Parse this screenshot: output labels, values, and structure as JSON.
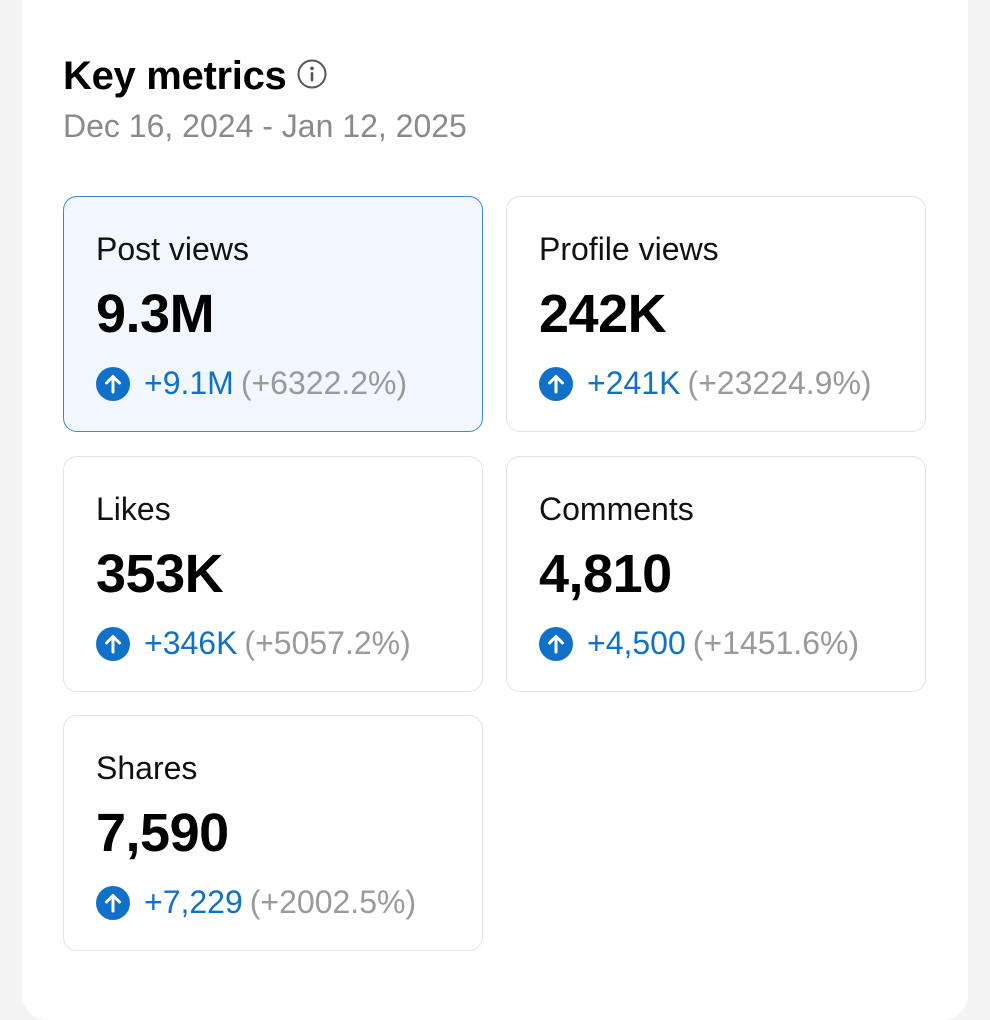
{
  "header": {
    "title": "Key metrics",
    "date_range": "Dec 16, 2024 - Jan 12, 2025"
  },
  "metrics": [
    {
      "label": "Post views",
      "value": "9.3M",
      "delta": "+9.1M",
      "percent": "(+6322.2%)",
      "selected": true
    },
    {
      "label": "Profile views",
      "value": "242K",
      "delta": "+241K",
      "percent": "(+23224.9%)",
      "selected": false
    },
    {
      "label": "Likes",
      "value": "353K",
      "delta": "+346K",
      "percent": "(+5057.2%)",
      "selected": false
    },
    {
      "label": "Comments",
      "value": "4,810",
      "delta": "+4,500",
      "percent": "(+1451.6%)",
      "selected": false
    },
    {
      "label": "Shares",
      "value": "7,590",
      "delta": "+7,229",
      "percent": "(+2002.5%)",
      "selected": false
    }
  ],
  "icons": {
    "info": "info-icon",
    "trend": "arrow-up-circle-icon"
  },
  "colors": {
    "accent": "#1171c9",
    "selected_border": "#3d8ad2",
    "selected_background": "#f1f7fc",
    "muted_text": "#8a8a8a"
  }
}
